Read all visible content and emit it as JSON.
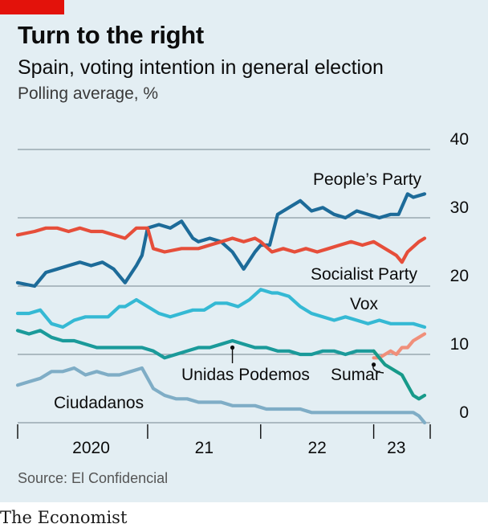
{
  "header": {
    "title": "Turn to the right",
    "subtitle": "Spain, voting intention in general election",
    "unit": "Polling average, %"
  },
  "footer": {
    "source": "Source: El Confidencial",
    "brand": "The Economist"
  },
  "colors": {
    "background": "#e3eef3",
    "grid": "#8a9aa3",
    "accent_flag": "#e3120b",
    "peoples_party": "#1d6b99",
    "socialist_party": "#e64e3a",
    "vox": "#35b9d4",
    "unidas_podemos": "#1a9a9a",
    "sumar": "#f08f7a",
    "ciudadanos": "#7fadc6",
    "podemos_after_sumar": "#179a8a"
  },
  "chart_data": {
    "type": "line",
    "x_unit": "year",
    "xlim": [
      2019.85,
      2023.5
    ],
    "ylim": [
      0,
      40
    ],
    "yticks": [
      0,
      10,
      20,
      30,
      40
    ],
    "grid": true,
    "year_ticks": [
      2020,
      2021,
      2022,
      2023
    ],
    "year_labels": [
      "2020",
      "21",
      "22",
      "23"
    ],
    "year_label_x": [
      2020.5,
      2021.5,
      2022.5,
      2023.2
    ],
    "series": [
      {
        "name": "People’s Party",
        "color": "#1d6b99",
        "x": [
          2019.85,
          2020.0,
          2020.1,
          2020.2,
          2020.3,
          2020.4,
          2020.5,
          2020.6,
          2020.7,
          2020.8,
          2020.9,
          2020.95,
          2021.0,
          2021.1,
          2021.2,
          2021.3,
          2021.4,
          2021.45,
          2021.55,
          2021.65,
          2021.75,
          2021.85,
          2021.95,
          2022.0,
          2022.08,
          2022.15,
          2022.25,
          2022.35,
          2022.45,
          2022.55,
          2022.65,
          2022.75,
          2022.85,
          2022.95,
          2023.05,
          2023.15,
          2023.22,
          2023.3,
          2023.35,
          2023.45
        ],
        "y": [
          20.5,
          20.0,
          22.0,
          22.5,
          23.0,
          23.5,
          23.0,
          23.5,
          22.5,
          20.5,
          23.0,
          24.5,
          28.5,
          29.0,
          28.5,
          29.5,
          27.0,
          26.5,
          27.0,
          26.5,
          25.0,
          22.5,
          25.0,
          26.0,
          26.0,
          30.5,
          31.5,
          32.5,
          31.0,
          31.5,
          30.5,
          30.0,
          31.0,
          30.5,
          30.0,
          30.5,
          30.5,
          33.5,
          33.0,
          33.5
        ]
      },
      {
        "name": "Socialist Party",
        "color": "#e64e3a",
        "x": [
          2019.85,
          2020.0,
          2020.1,
          2020.2,
          2020.3,
          2020.4,
          2020.5,
          2020.6,
          2020.7,
          2020.8,
          2020.9,
          2021.0,
          2021.05,
          2021.15,
          2021.3,
          2021.45,
          2021.55,
          2021.65,
          2021.75,
          2021.85,
          2021.95,
          2022.0,
          2022.1,
          2022.2,
          2022.3,
          2022.4,
          2022.5,
          2022.6,
          2022.7,
          2022.8,
          2022.9,
          2023.0,
          2023.1,
          2023.2,
          2023.25,
          2023.3,
          2023.4,
          2023.45
        ],
        "y": [
          27.5,
          28.0,
          28.5,
          28.5,
          28.0,
          28.5,
          28.0,
          28.0,
          27.5,
          27.0,
          28.5,
          28.5,
          25.5,
          25.0,
          25.5,
          25.5,
          26.0,
          26.5,
          27.0,
          26.5,
          27.0,
          26.5,
          25.0,
          25.5,
          25.0,
          25.5,
          25.0,
          25.5,
          26.0,
          26.5,
          26.0,
          26.5,
          25.5,
          24.5,
          23.5,
          25.0,
          26.5,
          27.0
        ]
      },
      {
        "name": "Vox",
        "color": "#35b9d4",
        "x": [
          2019.85,
          2019.95,
          2020.05,
          2020.15,
          2020.25,
          2020.35,
          2020.45,
          2020.55,
          2020.65,
          2020.75,
          2020.8,
          2020.9,
          2021.0,
          2021.1,
          2021.2,
          2021.3,
          2021.4,
          2021.5,
          2021.6,
          2021.7,
          2021.8,
          2021.9,
          2022.0,
          2022.1,
          2022.15,
          2022.25,
          2022.35,
          2022.45,
          2022.55,
          2022.65,
          2022.75,
          2022.85,
          2022.95,
          2023.05,
          2023.15,
          2023.25,
          2023.35,
          2023.45
        ],
        "y": [
          16.0,
          16.0,
          16.5,
          14.5,
          14.0,
          15.0,
          15.5,
          15.5,
          15.5,
          17.0,
          17.0,
          18.0,
          17.0,
          16.0,
          15.5,
          16.0,
          16.5,
          16.5,
          17.5,
          17.5,
          17.0,
          18.0,
          19.5,
          19.0,
          19.0,
          18.5,
          17.0,
          16.0,
          15.5,
          15.0,
          15.5,
          15.0,
          14.5,
          15.0,
          14.5,
          14.5,
          14.5,
          14.0
        ]
      },
      {
        "name": "Unidas Podemos",
        "color": "#1a9a9a",
        "x": [
          2019.85,
          2019.95,
          2020.05,
          2020.15,
          2020.25,
          2020.35,
          2020.45,
          2020.55,
          2020.65,
          2020.75,
          2020.85,
          2020.95,
          2021.05,
          2021.15,
          2021.25,
          2021.35,
          2021.45,
          2021.55,
          2021.65,
          2021.75,
          2021.85,
          2021.95,
          2022.05,
          2022.15,
          2022.25,
          2022.35,
          2022.45,
          2022.55,
          2022.65,
          2022.75,
          2022.85,
          2022.95,
          2023.0
        ],
        "y": [
          13.5,
          13.0,
          13.5,
          12.5,
          12.0,
          12.0,
          11.5,
          11.0,
          11.0,
          11.0,
          11.0,
          11.0,
          10.5,
          9.5,
          10.0,
          10.5,
          11.0,
          11.0,
          11.5,
          12.0,
          11.5,
          11.0,
          11.0,
          10.5,
          10.5,
          10.0,
          10.0,
          10.5,
          10.5,
          10.0,
          10.5,
          10.5,
          10.5
        ]
      },
      {
        "name": "Sumar",
        "color": "#f08f7a",
        "x": [
          2023.0,
          2023.05,
          2023.1,
          2023.15,
          2023.2,
          2023.25,
          2023.3,
          2023.35,
          2023.4,
          2023.45
        ],
        "y": [
          9.5,
          9.5,
          10.0,
          10.5,
          10.0,
          11.0,
          11.0,
          12.0,
          12.5,
          13.0
        ]
      },
      {
        "name": "",
        "color": "#179a8a",
        "x": [
          2023.0,
          2023.05,
          2023.1,
          2023.15,
          2023.2,
          2023.25,
          2023.3,
          2023.35,
          2023.4,
          2023.45
        ],
        "y": [
          10.5,
          9.5,
          8.5,
          8.0,
          7.5,
          7.0,
          5.5,
          4.0,
          3.5,
          4.0
        ]
      },
      {
        "name": "Ciudadanos",
        "color": "#7fadc6",
        "x": [
          2019.85,
          2019.95,
          2020.05,
          2020.15,
          2020.25,
          2020.35,
          2020.45,
          2020.55,
          2020.65,
          2020.75,
          2020.85,
          2020.95,
          2021.05,
          2021.15,
          2021.25,
          2021.35,
          2021.45,
          2021.55,
          2021.65,
          2021.75,
          2021.85,
          2021.95,
          2022.05,
          2022.15,
          2022.25,
          2022.35,
          2022.45,
          2022.55,
          2022.65,
          2022.75,
          2022.85,
          2022.95,
          2023.05,
          2023.15,
          2023.25,
          2023.35,
          2023.4,
          2023.45
        ],
        "y": [
          5.5,
          6.0,
          6.5,
          7.5,
          7.5,
          8.0,
          7.0,
          7.5,
          7.0,
          7.0,
          7.5,
          8.0,
          5.0,
          4.0,
          3.5,
          3.5,
          3.0,
          3.0,
          3.0,
          2.5,
          2.5,
          2.5,
          2.0,
          2.0,
          2.0,
          2.0,
          1.5,
          1.5,
          1.5,
          1.5,
          1.5,
          1.5,
          1.5,
          1.5,
          1.5,
          1.5,
          1.0,
          0.0
        ]
      }
    ],
    "annotations": [
      {
        "text": "People’s Party",
        "series": "People’s Party"
      },
      {
        "text": "Socialist Party",
        "series": "Socialist Party"
      },
      {
        "text": "Vox",
        "series": "Vox"
      },
      {
        "text": "Unidas Podemos",
        "series": "Unidas Podemos",
        "point": [
          2021.75,
          11.0
        ]
      },
      {
        "text": "Sumar",
        "series": "Sumar",
        "point": [
          2023.0,
          8.5
        ]
      },
      {
        "text": "Ciudadanos",
        "series": "Ciudadanos"
      }
    ]
  }
}
